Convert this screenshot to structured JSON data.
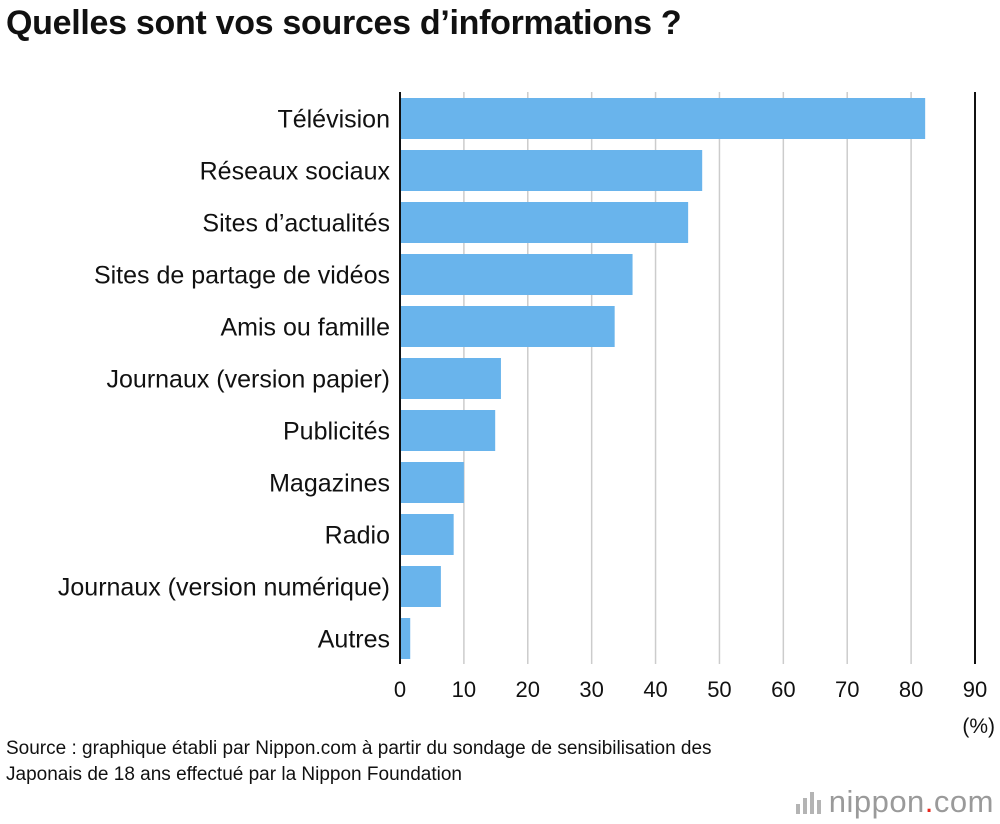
{
  "chart_data": {
    "type": "bar",
    "orientation": "horizontal",
    "title": "Quelles sont vos sources d’informations ?",
    "categories": [
      "Télévision",
      "Réseaux sociaux",
      "Sites d’actualités",
      "Sites de partage de vidéos",
      "Amis ou famille",
      "Journaux (version papier)",
      "Publicités",
      "Magazines",
      "Radio",
      "Journaux (version numérique)",
      "Autres"
    ],
    "values": [
      82.2,
      47.3,
      45.1,
      36.4,
      33.6,
      15.8,
      14.9,
      10.0,
      8.4,
      6.4,
      1.6
    ],
    "xlim": [
      0,
      90
    ],
    "xticks": [
      "0",
      "10",
      "20",
      "30",
      "40",
      "50",
      "60",
      "70",
      "80",
      "90"
    ],
    "xlabel": "(%)",
    "ylabel": "",
    "grid": true,
    "bar_color": "#69b4ec",
    "grid_color": "#cccccc"
  },
  "source_note": "Source : graphique établi par Nippon.com à partir du sondage de sensibilisation des Japonais de 18 ans effectué par la Nippon Foundation",
  "brand": {
    "name": "nippon",
    "dot": ".",
    "suffix": "com",
    "accent_color": "#e7261c"
  }
}
